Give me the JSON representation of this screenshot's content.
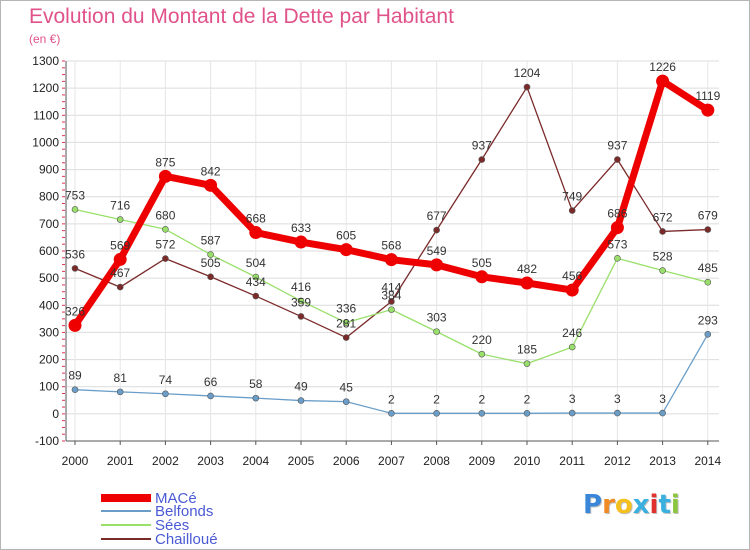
{
  "chart_data": {
    "type": "line",
    "title": "Evolution du Montant de la Dette par Habitant",
    "subtitle": "(en €)",
    "xlabel": "",
    "ylabel": "",
    "x": [
      "2000",
      "2001",
      "2002",
      "2003",
      "2004",
      "2005",
      "2006",
      "2007",
      "2008",
      "2009",
      "2010",
      "2011",
      "2012",
      "2013",
      "2014"
    ],
    "ylim": [
      -100,
      1300
    ],
    "yticks": [
      "-100",
      "0",
      "100",
      "200",
      "300",
      "400",
      "500",
      "600",
      "700",
      "800",
      "900",
      "1000",
      "1100",
      "1200",
      "1300"
    ],
    "grid": true,
    "legend_position": "bottom-left",
    "series": [
      {
        "name": "MACé",
        "color": "#ee0000",
        "values": [
          326,
          569,
          875,
          842,
          668,
          633,
          605,
          568,
          549,
          505,
          482,
          456,
          686,
          1226,
          1119
        ],
        "labels": [
          "326",
          "569",
          "875",
          "842",
          "668",
          "633",
          "605",
          "568",
          "549",
          "505",
          "482",
          "456",
          "686",
          "1226",
          "1119"
        ]
      },
      {
        "name": "Belfonds",
        "color": "#6a9ec8",
        "values": [
          89,
          81,
          74,
          66,
          58,
          49,
          45,
          2,
          2,
          2,
          2,
          3,
          3,
          3,
          293
        ],
        "labels": [
          "89",
          "81",
          "74",
          "66",
          "58",
          "49",
          "45",
          "2",
          "2",
          "2",
          "2",
          "3",
          "3",
          "3",
          "293"
        ]
      },
      {
        "name": "Sées",
        "color": "#99e06a",
        "values": [
          753,
          716,
          680,
          587,
          504,
          416,
          336,
          384,
          303,
          220,
          185,
          246,
          573,
          528,
          485
        ],
        "labels": [
          "753",
          "716",
          "680",
          "587",
          "504",
          "416",
          "336",
          "384",
          "303",
          "220",
          "185",
          "246",
          "573",
          "528",
          "485"
        ]
      },
      {
        "name": "Chailloué",
        "color": "#7b2a2a",
        "values": [
          536,
          467,
          572,
          505,
          434,
          359,
          281,
          414,
          677,
          937,
          1204,
          749,
          937,
          672,
          679
        ],
        "labels": [
          "536",
          "467",
          "572",
          "505",
          "434",
          "359",
          "281",
          "414",
          "677",
          "937",
          "1204",
          "749",
          "937",
          "672",
          "679"
        ]
      }
    ]
  },
  "logo": {
    "letters": [
      "P",
      "r",
      "o",
      "x",
      "i",
      "t",
      "i"
    ],
    "colors": [
      "#3a86d8",
      "#f08a24",
      "#f4c020",
      "#3ab0e0",
      "#e03030",
      "#3ab0e0",
      "#8cc63f"
    ]
  }
}
